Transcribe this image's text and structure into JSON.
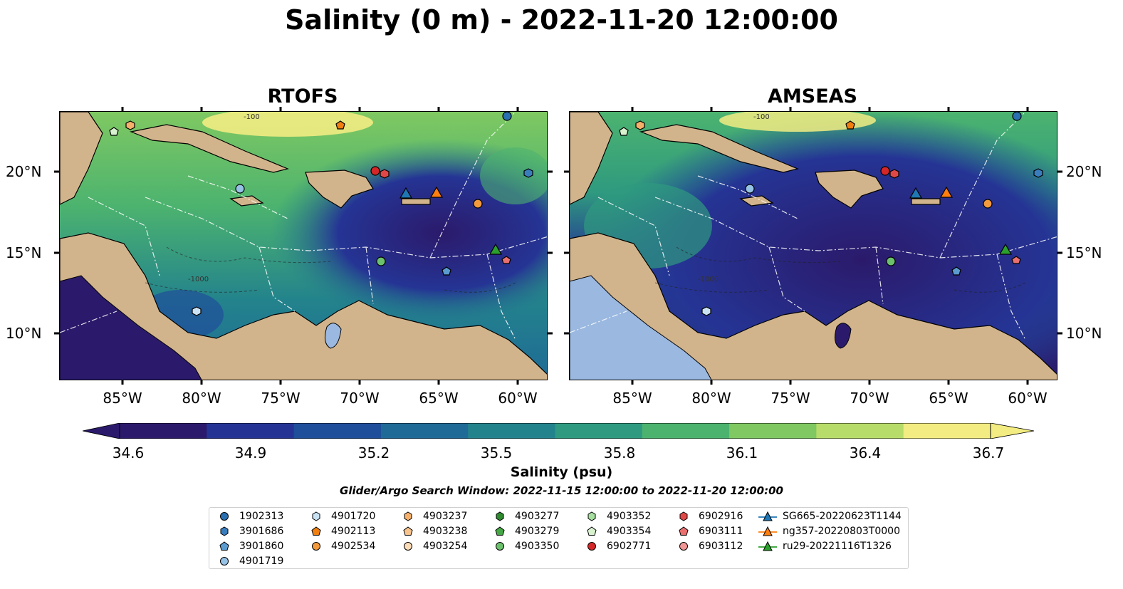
{
  "figure": {
    "title": "Salinity (0 m) - 2022-11-20 12:00:00",
    "panels": [
      {
        "title": "RTOFS"
      },
      {
        "title": "AMSEAS"
      }
    ],
    "lon_ticks": [
      "85°W",
      "80°W",
      "75°W",
      "70°W",
      "65°W",
      "60°W"
    ],
    "lat_ticks": [
      "20°N",
      "15°N",
      "10°N"
    ],
    "contour_labels": [
      "-100",
      "-1000"
    ],
    "colorbar": {
      "label": "Salinity (psu)",
      "ticks": [
        "34.6",
        "34.9",
        "35.2",
        "35.5",
        "35.8",
        "36.1",
        "36.4",
        "36.7"
      ],
      "colors": [
        "#2b1a6b",
        "#253494",
        "#1f4e9a",
        "#1f6a96",
        "#23838c",
        "#2f9a7f",
        "#4cb36f",
        "#7fc862",
        "#b8dc6a",
        "#f2ec82"
      ],
      "extend": "both"
    },
    "search_window": "Glider/Argo Search Window: 2022-11-15 12:00:00 to 2022-11-20 12:00:00",
    "legend": [
      {
        "label": "1902313",
        "marker": "circle",
        "color": "#2a6fb0"
      },
      {
        "label": "3901686",
        "marker": "hexagon",
        "color": "#3a7dbd"
      },
      {
        "label": "3901860",
        "marker": "pentagon",
        "color": "#5a9bd0"
      },
      {
        "label": "4901719",
        "marker": "circle",
        "color": "#96c2e6"
      },
      {
        "label": "4901720",
        "marker": "hexagon",
        "color": "#c9e2f4"
      },
      {
        "label": "4902113",
        "marker": "pentagon",
        "color": "#f07f10"
      },
      {
        "label": "4902534",
        "marker": "circle",
        "color": "#f39a3c"
      },
      {
        "label": "4903237",
        "marker": "hexagon",
        "color": "#f5b06a"
      },
      {
        "label": "4903238",
        "marker": "pentagon",
        "color": "#f7c48e"
      },
      {
        "label": "4903254",
        "marker": "circle",
        "color": "#fcdcb8"
      },
      {
        "label": "4903277",
        "marker": "hexagon",
        "color": "#2e8b2e"
      },
      {
        "label": "4903279",
        "marker": "pentagon",
        "color": "#45a845"
      },
      {
        "label": "4903350",
        "marker": "circle",
        "color": "#6cc26c"
      },
      {
        "label": "4903352",
        "marker": "hexagon",
        "color": "#a6dfa0"
      },
      {
        "label": "4903354",
        "marker": "pentagon",
        "color": "#d8f2d0"
      },
      {
        "label": "6902771",
        "marker": "circle",
        "color": "#d62728"
      },
      {
        "label": "6902916",
        "marker": "hexagon",
        "color": "#e04848"
      },
      {
        "label": "6903111",
        "marker": "pentagon",
        "color": "#ea6f6f"
      },
      {
        "label": "6903112",
        "marker": "circle",
        "color": "#f39696"
      },
      {
        "label": "SG665-20220623T1144",
        "marker": "triangle",
        "color": "#1f77b4"
      },
      {
        "label": "ng357-20220803T0000",
        "marker": "triangle",
        "color": "#ff7f0e"
      },
      {
        "label": "ru29-20221116T1326",
        "marker": "triangle",
        "color": "#2ca02c"
      }
    ]
  }
}
